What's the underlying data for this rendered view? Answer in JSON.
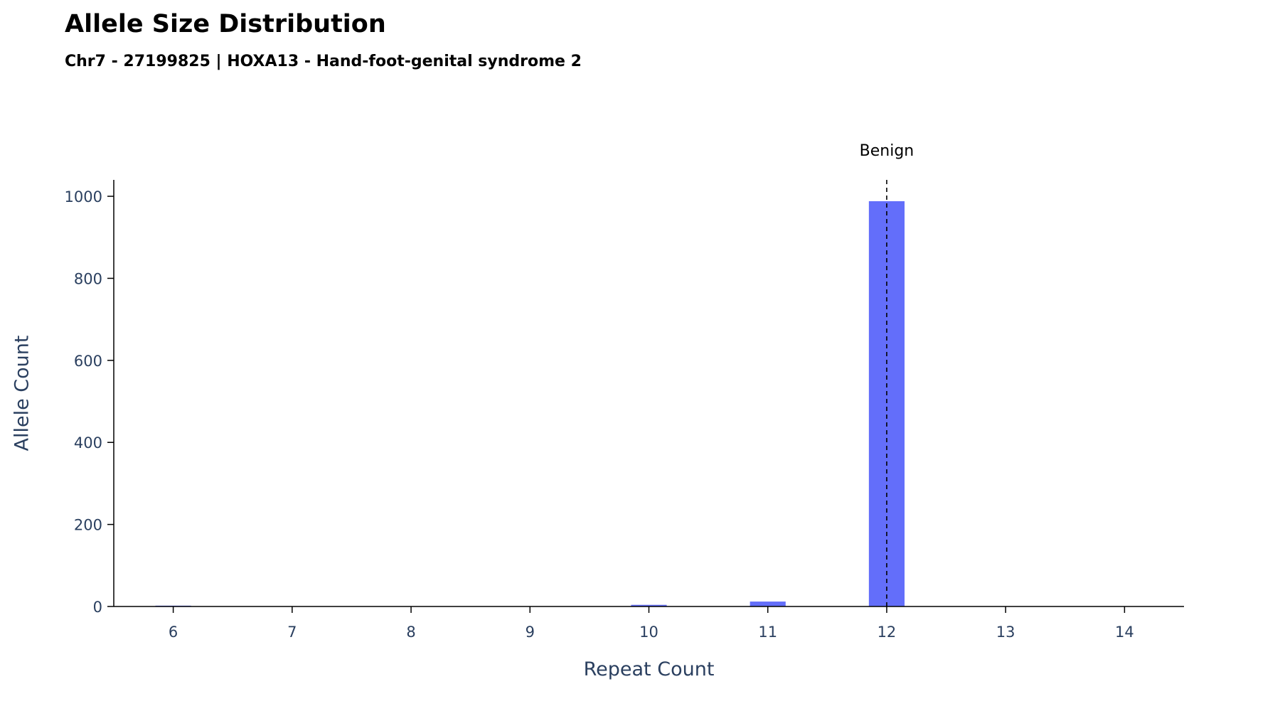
{
  "chart_data": {
    "type": "bar",
    "title": "Allele Size Distribution",
    "subtitle": "Chr7 - 27199825 | HOXA13 - Hand-foot-genital syndrome 2",
    "xlabel": "Repeat Count",
    "ylabel": "Allele Count",
    "xlim": [
      5.5,
      14.5
    ],
    "ylim": [
      0,
      1040
    ],
    "x_ticks": [
      6,
      7,
      8,
      9,
      10,
      11,
      12,
      13,
      14
    ],
    "y_ticks": [
      0,
      200,
      400,
      600,
      800,
      1000
    ],
    "grid": false,
    "bar_color": "#636efa",
    "bars": [
      {
        "x": 6,
        "value": 2
      },
      {
        "x": 10,
        "value": 4
      },
      {
        "x": 11,
        "value": 12
      },
      {
        "x": 12,
        "value": 988
      }
    ],
    "reference_lines": [
      {
        "x": 12,
        "label": "Benign",
        "style": "dashed",
        "color": "#000000"
      }
    ]
  }
}
